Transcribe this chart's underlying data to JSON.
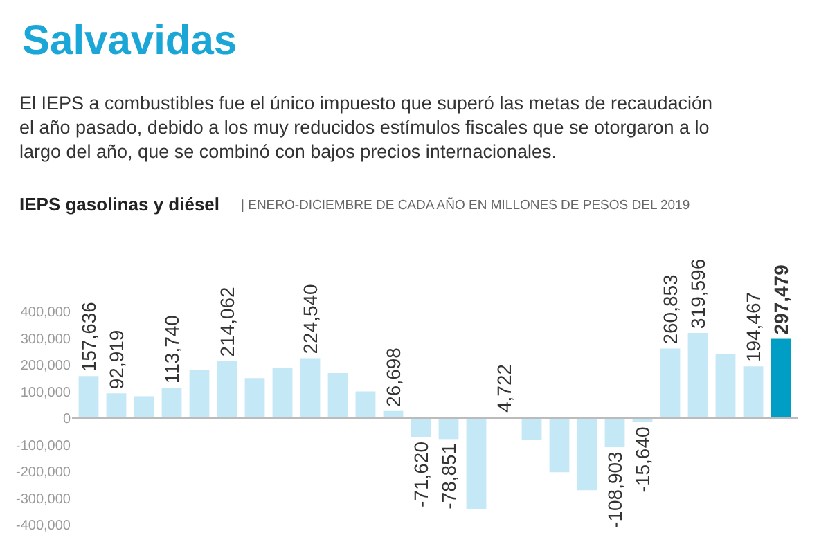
{
  "chart_data": {
    "type": "bar",
    "title": "Salvavidas",
    "subtitle": "El IEPS a combustibles fue el único impuesto que superó las metas de recaudación el año pasado, debido a los muy reducidos estímulos fiscales que se otorgaron a lo largo del año, que se combinó con bajos precios internacionales.",
    "annotations": [
      "IEPS gasolinas y diésel",
      "| ENERO-DICIEMBRE DE CADA AÑO EN MILLONES DE PESOS DEL 2019"
    ],
    "categories": [
      null,
      null,
      null,
      null,
      null,
      null,
      null,
      null,
      null,
      null,
      null,
      null,
      null,
      null,
      null,
      null,
      null,
      null,
      null,
      null,
      null,
      null,
      null,
      null,
      null,
      null
    ],
    "values": [
      157636,
      92919,
      82000,
      113740,
      179000,
      214062,
      150000,
      187000,
      224540,
      169000,
      100000,
      26698,
      -71620,
      -78851,
      -342000,
      4722,
      -81000,
      -203000,
      -271000,
      -108903,
      -15640,
      260853,
      319596,
      239000,
      194467,
      297479
    ],
    "value_labels": [
      "157,636",
      "92,919",
      null,
      "113,740",
      null,
      "214,062",
      null,
      null,
      "224,540",
      null,
      null,
      "26,698",
      "-71,620",
      "-78,851",
      null,
      "4,722",
      null,
      null,
      null,
      "-108,903",
      "-15,640",
      "260,853",
      "319,596",
      null,
      "194,467",
      "297,479"
    ],
    "colors": [
      "#c5e8f7",
      "#c5e8f7",
      "#c5e8f7",
      "#c5e8f7",
      "#c5e8f7",
      "#c5e8f7",
      "#c5e8f7",
      "#c5e8f7",
      "#c5e8f7",
      "#c5e8f7",
      "#c5e8f7",
      "#c5e8f7",
      "#c5e8f7",
      "#c5e8f7",
      "#c5e8f7",
      "#c5e8f7",
      "#c5e8f7",
      "#c5e8f7",
      "#c5e8f7",
      "#c5e8f7",
      "#c5e8f7",
      "#c5e8f7",
      "#c5e8f7",
      "#c5e8f7",
      "#c5e8f7",
      "#009ec4"
    ],
    "ylim": [
      -400000,
      400000
    ],
    "yticks": [
      {
        "value": -400000,
        "label": "-400,000"
      },
      {
        "value": -300000,
        "label": "-300,000"
      },
      {
        "value": -200000,
        "label": "-200,000"
      },
      {
        "value": -100000,
        "label": "-100,000"
      },
      {
        "value": 0,
        "label": "0"
      },
      {
        "value": 100000,
        "label": "100,000"
      },
      {
        "value": 200000,
        "label": "200,000"
      },
      {
        "value": 300000,
        "label": "300,000"
      },
      {
        "value": 400000,
        "label": "400,000"
      }
    ],
    "ref_lines": [
      {
        "axis": "y",
        "value": 0,
        "color": "#bbbbbb"
      }
    ],
    "grid": false,
    "legend": false
  }
}
